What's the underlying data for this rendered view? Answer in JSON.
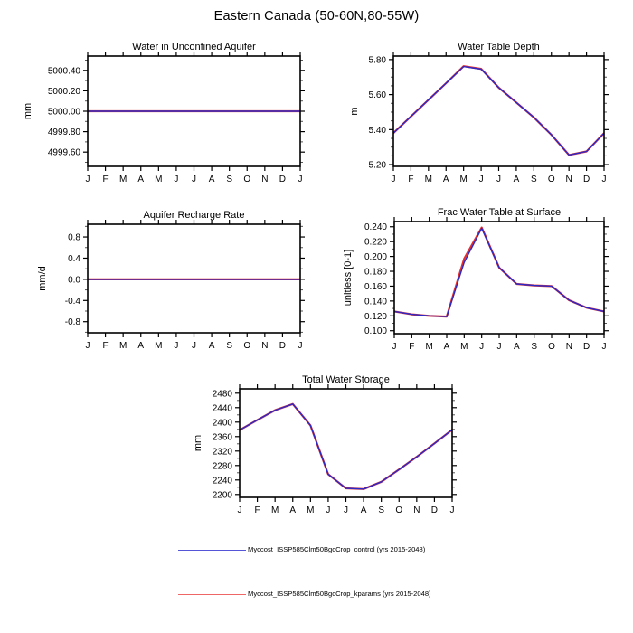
{
  "title": "Eastern Canada (50-60N,80-55W)",
  "legend": [
    {
      "label": "Myccost_ISSP585Clm50BgcCrop_control (yrs 2015-2048)",
      "color": "#5555d8"
    },
    {
      "label": "Myccost_ISSP585Clm50BgcCrop_kparams (yrs 2015-2048)",
      "color": "#ee6666"
    }
  ],
  "colors": {
    "axis": "#000000",
    "minor_tick": "#555555",
    "control_line": "#2a2ac8",
    "kparams_line": "#e03030"
  },
  "chart_data": [
    {
      "type": "line",
      "title": "Water in Unconfined Aquifer",
      "ylabel": "mm",
      "ylim": [
        4999.46,
        5000.54
      ],
      "yticks": [
        {
          "v": 4999.6,
          "label": "4999.60"
        },
        {
          "v": 4999.8,
          "label": "4999.80"
        },
        {
          "v": 5000.0,
          "label": "5000.00"
        },
        {
          "v": 5000.2,
          "label": "5000.20"
        },
        {
          "v": 5000.4,
          "label": "5000.40"
        }
      ],
      "yminor": [
        4999.5,
        4999.7,
        4999.9,
        5000.1,
        5000.3,
        5000.5
      ],
      "categories": [
        "J",
        "F",
        "M",
        "A",
        "M",
        "J",
        "J",
        "A",
        "S",
        "O",
        "N",
        "D",
        "J"
      ],
      "series": [
        {
          "name": "Myccost_ISSP585Clm50BgcCrop_control",
          "color": "#2a2ac8",
          "values": [
            5000.0,
            5000.0,
            5000.0,
            5000.0,
            5000.0,
            5000.0,
            5000.0,
            5000.0,
            5000.0,
            5000.0,
            5000.0,
            5000.0,
            5000.0
          ]
        },
        {
          "name": "Myccost_ISSP585Clm50BgcCrop_kparams",
          "color": "#e03030",
          "values": [
            5000.0,
            5000.0,
            5000.0,
            5000.0,
            5000.0,
            5000.0,
            5000.0,
            5000.0,
            5000.0,
            5000.0,
            5000.0,
            5000.0,
            5000.0
          ]
        }
      ]
    },
    {
      "type": "line",
      "title": "Water Table Depth",
      "ylabel": "m",
      "ylim": [
        5.19,
        5.82
      ],
      "yticks": [
        {
          "v": 5.2,
          "label": "5.20"
        },
        {
          "v": 5.4,
          "label": "5.40"
        },
        {
          "v": 5.6,
          "label": "5.60"
        },
        {
          "v": 5.8,
          "label": "5.80"
        }
      ],
      "yminor": [
        5.25,
        5.3,
        5.35,
        5.45,
        5.5,
        5.55,
        5.65,
        5.7,
        5.75
      ],
      "categories": [
        "J",
        "F",
        "M",
        "A",
        "M",
        "J",
        "J",
        "A",
        "S",
        "O",
        "N",
        "D",
        "J"
      ],
      "series": [
        {
          "name": "Myccost_ISSP585Clm50BgcCrop_control",
          "color": "#2a2ac8",
          "values": [
            5.38,
            5.475,
            5.57,
            5.665,
            5.76,
            5.745,
            5.64,
            5.555,
            5.47,
            5.37,
            5.255,
            5.275,
            5.38
          ]
        },
        {
          "name": "Myccost_ISSP585Clm50BgcCrop_kparams",
          "color": "#e03030",
          "values": [
            5.38,
            5.475,
            5.57,
            5.665,
            5.762,
            5.747,
            5.64,
            5.555,
            5.47,
            5.37,
            5.255,
            5.275,
            5.38
          ]
        }
      ]
    },
    {
      "type": "line",
      "title": "Aquifer Recharge Rate",
      "ylabel": "mm/d",
      "ylim": [
        -1.01,
        1.04
      ],
      "yticks": [
        {
          "v": -0.8,
          "label": "-0.8"
        },
        {
          "v": -0.4,
          "label": "-0.4"
        },
        {
          "v": 0.0,
          "label": "0.0"
        },
        {
          "v": 0.4,
          "label": "0.4"
        },
        {
          "v": 0.8,
          "label": "0.8"
        }
      ],
      "yminor": [
        -1.0,
        -0.6,
        -0.2,
        0.2,
        0.6,
        1.0
      ],
      "categories": [
        "J",
        "F",
        "M",
        "A",
        "M",
        "J",
        "J",
        "A",
        "S",
        "O",
        "N",
        "D",
        "J"
      ],
      "series": [
        {
          "name": "Myccost_ISSP585Clm50BgcCrop_control",
          "color": "#2a2ac8",
          "values": [
            0.0,
            0.0,
            0.0,
            0.0,
            0.0,
            0.0,
            0.0,
            0.0,
            0.0,
            0.0,
            0.0,
            0.0,
            0.0
          ]
        },
        {
          "name": "Myccost_ISSP585Clm50BgcCrop_kparams",
          "color": "#e03030",
          "values": [
            0.0,
            0.0,
            0.0,
            0.0,
            0.0,
            0.0,
            0.0,
            0.0,
            0.0,
            0.0,
            0.0,
            0.0,
            0.0
          ]
        }
      ]
    },
    {
      "type": "line",
      "title": "Frac Water Table at Surface",
      "ylabel": "unitless [0-1]",
      "ylim": [
        0.096,
        0.247
      ],
      "yticks": [
        {
          "v": 0.1,
          "label": "0.100"
        },
        {
          "v": 0.12,
          "label": "0.120"
        },
        {
          "v": 0.14,
          "label": "0.140"
        },
        {
          "v": 0.16,
          "label": "0.160"
        },
        {
          "v": 0.18,
          "label": "0.180"
        },
        {
          "v": 0.2,
          "label": "0.200"
        },
        {
          "v": 0.22,
          "label": "0.220"
        },
        {
          "v": 0.24,
          "label": "0.240"
        }
      ],
      "yminor": [
        0.11,
        0.13,
        0.15,
        0.17,
        0.19,
        0.21,
        0.23
      ],
      "categories": [
        "J",
        "F",
        "M",
        "A",
        "M",
        "J",
        "J",
        "A",
        "S",
        "O",
        "N",
        "D",
        "J"
      ],
      "series": [
        {
          "name": "Myccost_ISSP585Clm50BgcCrop_control",
          "color": "#2a2ac8",
          "values": [
            0.126,
            0.122,
            0.12,
            0.119,
            0.192,
            0.238,
            0.185,
            0.163,
            0.161,
            0.16,
            0.141,
            0.131,
            0.126
          ]
        },
        {
          "name": "Myccost_ISSP585Clm50BgcCrop_kparams",
          "color": "#e03030",
          "values": [
            0.126,
            0.122,
            0.12,
            0.119,
            0.197,
            0.239,
            0.185,
            0.163,
            0.161,
            0.16,
            0.141,
            0.131,
            0.126
          ]
        }
      ]
    },
    {
      "type": "line",
      "title": "Total Water Storage",
      "ylabel": "mm",
      "ylim": [
        2192,
        2492
      ],
      "yticks": [
        {
          "v": 2200,
          "label": "2200"
        },
        {
          "v": 2240,
          "label": "2240"
        },
        {
          "v": 2280,
          "label": "2280"
        },
        {
          "v": 2320,
          "label": "2320"
        },
        {
          "v": 2360,
          "label": "2360"
        },
        {
          "v": 2400,
          "label": "2400"
        },
        {
          "v": 2440,
          "label": "2440"
        },
        {
          "v": 2480,
          "label": "2480"
        }
      ],
      "yminor": [
        2220,
        2260,
        2300,
        2340,
        2380,
        2420,
        2460
      ],
      "categories": [
        "J",
        "F",
        "M",
        "A",
        "M",
        "J",
        "J",
        "A",
        "S",
        "O",
        "N",
        "D",
        "J"
      ],
      "series": [
        {
          "name": "Myccost_ISSP585Clm50BgcCrop_control",
          "color": "#2a2ac8",
          "values": [
            2378,
            2406,
            2433,
            2450,
            2391,
            2256,
            2217,
            2215,
            2235,
            2269,
            2304,
            2341,
            2379
          ]
        },
        {
          "name": "Myccost_ISSP585Clm50BgcCrop_kparams",
          "color": "#e03030",
          "values": [
            2378,
            2406,
            2433,
            2450,
            2391,
            2256,
            2217,
            2215,
            2235,
            2269,
            2304,
            2341,
            2379
          ]
        }
      ]
    }
  ]
}
